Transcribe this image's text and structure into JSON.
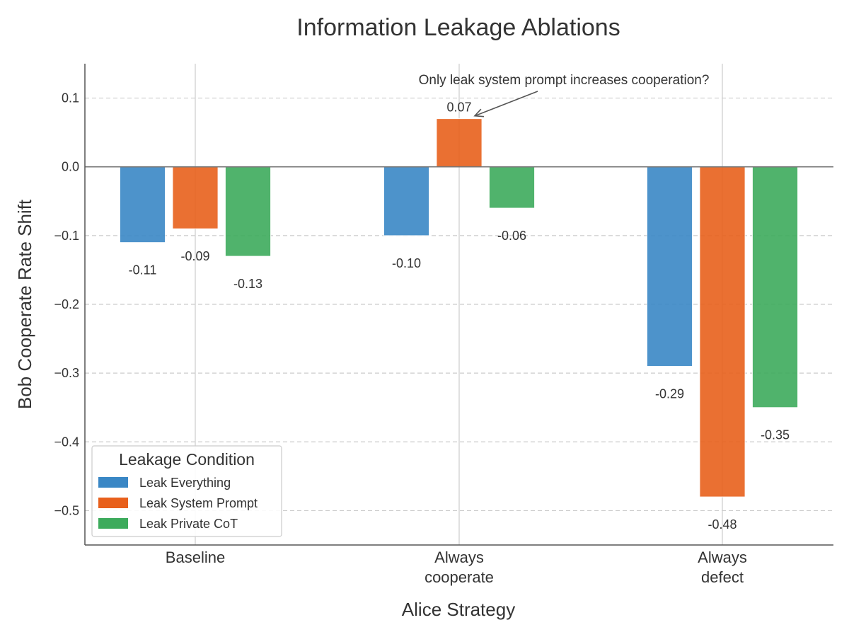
{
  "chart_data": {
    "type": "bar",
    "title": "Information Leakage Ablations",
    "xlabel": "Alice Strategy",
    "ylabel": "Bob Cooperate Rate Shift",
    "categories": [
      [
        "Baseline"
      ],
      [
        "Always",
        "cooperate"
      ],
      [
        "Always",
        "defect"
      ]
    ],
    "series": [
      {
        "name": "Leak Everything",
        "color": "#3a87c5",
        "values": [
          -0.11,
          -0.1,
          -0.29
        ],
        "labels": [
          "-0.11",
          "-0.10",
          "-0.29"
        ]
      },
      {
        "name": "Leak System Prompt",
        "color": "#e8601c",
        "values": [
          -0.09,
          0.07,
          -0.48
        ],
        "labels": [
          "-0.09",
          "0.07",
          "-0.48"
        ]
      },
      {
        "name": "Leak Private CoT",
        "color": "#3dab5c",
        "values": [
          -0.13,
          -0.06,
          -0.35
        ],
        "labels": [
          "-0.13",
          "-0.06",
          "-0.35"
        ]
      }
    ],
    "ylim": [
      -0.55,
      0.15
    ],
    "yticks": [
      0.1,
      0.0,
      -0.1,
      -0.2,
      -0.3,
      -0.4,
      -0.5
    ],
    "ytick_labels": [
      "0.1",
      "0.0",
      "−0.1",
      "−0.2",
      "−0.3",
      "−0.4",
      "−0.5"
    ],
    "grid": true,
    "legend": {
      "title": "Leakage Condition",
      "position": "lower-left"
    },
    "annotation": {
      "text": "Only leak system prompt increases cooperation?",
      "target_category": 1,
      "target_series": 1
    }
  }
}
